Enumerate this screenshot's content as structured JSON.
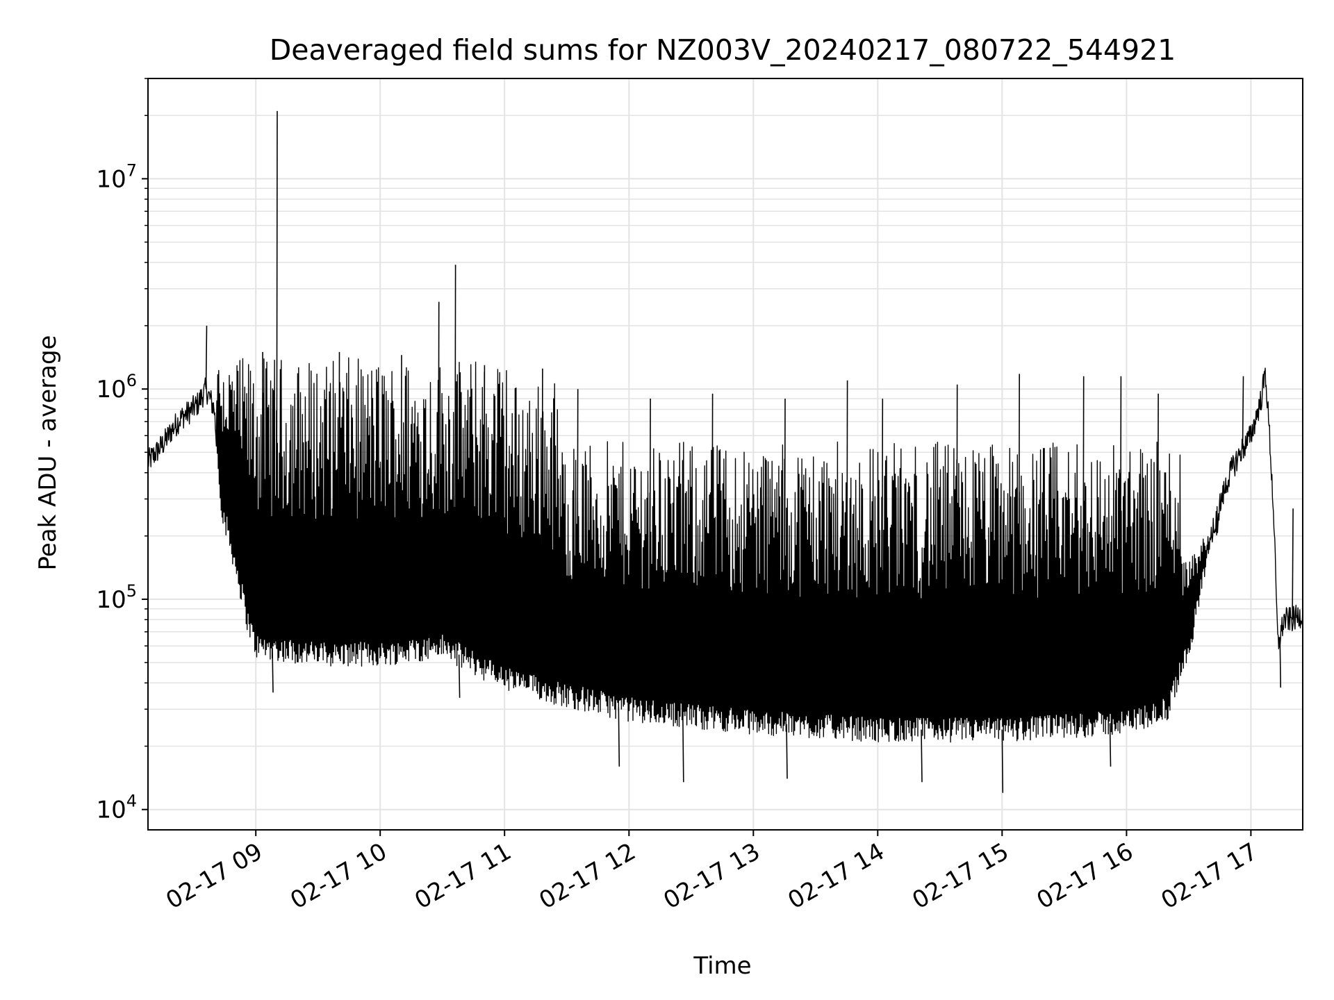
{
  "chart_data": {
    "type": "line",
    "title": "Deaveraged field sums for NZ003V_20240217_080722_544921",
    "xlabel": "Time",
    "ylabel": "Peak ADU - average",
    "yscale": "log",
    "ylim": [
      8000,
      30000000
    ],
    "xlim": [
      "2024-02-17 08:08",
      "2024-02-17 17:25"
    ],
    "grid": true,
    "line_color": "#000000",
    "x_ticks": [
      {
        "t": "2024-02-17 09:00",
        "label": "02-17 09"
      },
      {
        "t": "2024-02-17 10:00",
        "label": "02-17 10"
      },
      {
        "t": "2024-02-17 11:00",
        "label": "02-17 11"
      },
      {
        "t": "2024-02-17 12:00",
        "label": "02-17 12"
      },
      {
        "t": "2024-02-17 13:00",
        "label": "02-17 13"
      },
      {
        "t": "2024-02-17 14:00",
        "label": "02-17 14"
      },
      {
        "t": "2024-02-17 15:00",
        "label": "02-17 15"
      },
      {
        "t": "2024-02-17 16:00",
        "label": "02-17 16"
      },
      {
        "t": "2024-02-17 17:00",
        "label": "02-17 17"
      }
    ],
    "y_ticks": [
      {
        "v": 10000,
        "base": "10",
        "exp": "4"
      },
      {
        "v": 100000,
        "base": "10",
        "exp": "5"
      },
      {
        "v": 1000000,
        "base": "10",
        "exp": "6"
      },
      {
        "v": 10000000,
        "base": "10",
        "exp": "7"
      }
    ],
    "series": [
      {
        "points": [
          [
            "2024-02-17 08:08",
            450000
          ],
          [
            "2024-02-17 08:12",
            500000
          ],
          [
            "2024-02-17 08:16",
            560000
          ],
          [
            "2024-02-17 08:20",
            650000
          ],
          [
            "2024-02-17 08:24",
            730000
          ],
          [
            "2024-02-17 08:28",
            780000
          ],
          [
            "2024-02-17 08:32",
            850000
          ],
          [
            "2024-02-17 08:36",
            1000000
          ],
          [
            "2024-02-17 08:40",
            800000
          ],
          [
            "2024-02-17 08:42",
            400000
          ],
          [
            "2024-02-17 08:44",
            260000
          ],
          [
            "2024-02-17 08:47",
            200000
          ],
          [
            "2024-02-17 08:50",
            150000
          ],
          [
            "2024-02-17 08:53",
            110000
          ],
          [
            "2024-02-17 08:56",
            80000
          ],
          [
            "2024-02-17 09:00",
            60000
          ],
          [
            "2024-02-17 09:30",
            55000
          ],
          [
            "2024-02-17 10:00",
            55000
          ],
          [
            "2024-02-17 10:30",
            60000
          ],
          [
            "2024-02-17 11:00",
            42000
          ],
          [
            "2024-02-17 11:30",
            35000
          ],
          [
            "2024-02-17 12:00",
            30000
          ],
          [
            "2024-02-17 12:30",
            28000
          ],
          [
            "2024-02-17 13:00",
            26000
          ],
          [
            "2024-02-17 13:30",
            25000
          ],
          [
            "2024-02-17 14:00",
            24000
          ],
          [
            "2024-02-17 14:30",
            24000
          ],
          [
            "2024-02-17 15:00",
            24000
          ],
          [
            "2024-02-17 15:30",
            25000
          ],
          [
            "2024-02-17 16:00",
            26000
          ],
          [
            "2024-02-17 16:20",
            30000
          ],
          [
            "2024-02-17 16:30",
            60000
          ],
          [
            "2024-02-17 16:35",
            100000
          ],
          [
            "2024-02-17 16:40",
            180000
          ],
          [
            "2024-02-17 16:45",
            280000
          ],
          [
            "2024-02-17 16:50",
            400000
          ],
          [
            "2024-02-17 16:55",
            500000
          ],
          [
            "2024-02-17 17:00",
            600000
          ],
          [
            "2024-02-17 17:05",
            900000
          ],
          [
            "2024-02-17 17:07",
            1200000
          ],
          [
            "2024-02-17 17:09",
            600000
          ],
          [
            "2024-02-17 17:11",
            250000
          ],
          [
            "2024-02-17 17:13",
            60000
          ],
          [
            "2024-02-17 17:16",
            80000
          ],
          [
            "2024-02-17 17:20",
            80000
          ],
          [
            "2024-02-17 17:25",
            85000
          ]
        ],
        "spikes": [
          [
            "2024-02-17 09:10",
            21000000
          ],
          [
            "2024-02-17 10:28",
            2600000
          ],
          [
            "2024-02-17 10:36",
            3900000
          ],
          [
            "2024-02-17 08:36",
            2000000
          ],
          [
            "2024-02-17 09:03",
            1500000
          ],
          [
            "2024-02-17 09:40",
            1500000
          ],
          [
            "2024-02-17 10:10",
            1450000
          ],
          [
            "2024-02-17 10:50",
            1300000
          ],
          [
            "2024-02-17 11:18",
            1250000
          ],
          [
            "2024-02-17 11:35",
            1000000
          ],
          [
            "2024-02-17 12:10",
            900000
          ],
          [
            "2024-02-17 12:40",
            950000
          ],
          [
            "2024-02-17 13:15",
            900000
          ],
          [
            "2024-02-17 13:45",
            1100000
          ],
          [
            "2024-02-17 14:02",
            900000
          ],
          [
            "2024-02-17 14:38",
            1050000
          ],
          [
            "2024-02-17 15:08",
            1180000
          ],
          [
            "2024-02-17 15:39",
            1150000
          ],
          [
            "2024-02-17 15:57",
            1150000
          ],
          [
            "2024-02-17 16:15",
            950000
          ],
          [
            "2024-02-17 16:56",
            1150000
          ],
          [
            "2024-02-17 17:20",
            270000
          ]
        ],
        "dips": [
          [
            "2024-02-17 09:08",
            36000
          ],
          [
            "2024-02-17 10:38",
            34000
          ],
          [
            "2024-02-17 11:55",
            16000
          ],
          [
            "2024-02-17 12:26",
            13500
          ],
          [
            "2024-02-17 13:16",
            14000
          ],
          [
            "2024-02-17 14:21",
            13500
          ],
          [
            "2024-02-17 15:00",
            12000
          ],
          [
            "2024-02-17 15:52",
            16000
          ],
          [
            "2024-02-17 17:14",
            38000
          ]
        ]
      }
    ]
  }
}
